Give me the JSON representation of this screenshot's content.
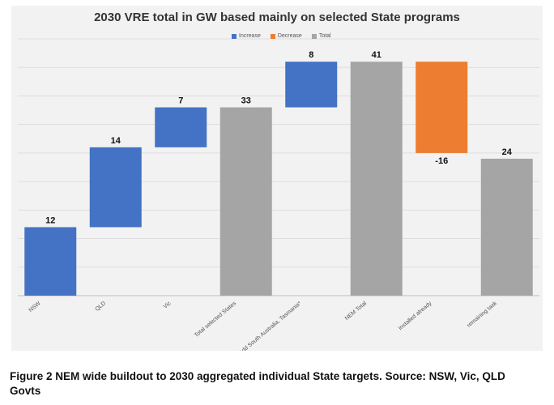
{
  "chart_data": {
    "type": "bar",
    "subtype": "waterfall",
    "title": "2030 VRE total in GW based mainly on selected State programs",
    "legend_position": "top",
    "legend": [
      {
        "label": "Increase",
        "color": "#4472c4"
      },
      {
        "label": "Decrease",
        "color": "#ed7d31"
      },
      {
        "label": "Total",
        "color": "#a5a5a5"
      }
    ],
    "categories": [
      "NSW",
      "QLD",
      "Vic",
      "Total selected States",
      "Add South Australia, Tasmania*",
      "NEM Total",
      "Installed already",
      "remaining task"
    ],
    "values": [
      12,
      14,
      7,
      33,
      8,
      41,
      -16,
      24
    ],
    "data_labels": [
      "12",
      "14",
      "7",
      "33",
      "8",
      "41",
      "-16",
      "24"
    ],
    "kinds": [
      "increase",
      "increase",
      "increase",
      "total",
      "increase",
      "total",
      "decrease",
      "total"
    ],
    "ylim": [
      0,
      45
    ],
    "grid": true
  },
  "caption": "Figure 2 NEM wide buildout to 2030 aggregated individual State targets. Source: NSW, Vic, QLD Govts"
}
